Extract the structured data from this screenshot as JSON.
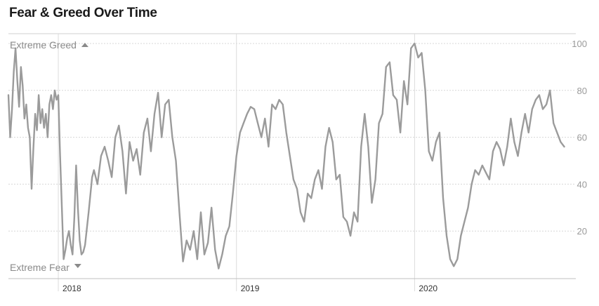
{
  "chart_data": {
    "type": "line",
    "title": "Fear & Greed Over Time",
    "ylim": [
      0,
      100
    ],
    "yticks": [
      20,
      40,
      60,
      80,
      100
    ],
    "xticks": [
      {
        "label": "2018",
        "x": 2018.0
      },
      {
        "label": "2019",
        "x": 2019.0
      },
      {
        "label": "2020",
        "x": 2020.0
      }
    ],
    "xlim": [
      2017.72,
      2020.85
    ],
    "grid": true,
    "annotations": {
      "top": "Extreme Greed",
      "bottom": "Extreme Fear"
    },
    "series": [
      {
        "x": [
          2017.72,
          2017.73,
          2017.74,
          2017.75,
          2017.76,
          2017.77,
          2017.78,
          2017.79,
          2017.8,
          2017.81,
          2017.82,
          2017.83,
          2017.84,
          2017.85,
          2017.86,
          2017.87,
          2017.88,
          2017.89,
          2017.9,
          2017.91,
          2017.92,
          2017.93,
          2017.94,
          2017.95,
          2017.96,
          2017.97,
          2017.98,
          2017.99,
          2018.0,
          2018.01,
          2018.02,
          2018.03,
          2018.04,
          2018.05,
          2018.06,
          2018.07,
          2018.08,
          2018.09,
          2018.1,
          2018.11,
          2018.12,
          2018.13,
          2018.14,
          2018.15,
          2018.17,
          2018.19,
          2018.2,
          2018.22,
          2018.24,
          2018.26,
          2018.28,
          2018.3,
          2018.32,
          2018.34,
          2018.36,
          2018.38,
          2018.4,
          2018.42,
          2018.44,
          2018.46,
          2018.48,
          2018.5,
          2018.52,
          2018.54,
          2018.56,
          2018.58,
          2018.6,
          2018.62,
          2018.64,
          2018.66,
          2018.68,
          2018.7,
          2018.72,
          2018.74,
          2018.76,
          2018.78,
          2018.8,
          2018.82,
          2018.84,
          2018.86,
          2018.88,
          2018.9,
          2018.92,
          2018.94,
          2018.96,
          2018.98,
          2019.0,
          2019.02,
          2019.04,
          2019.06,
          2019.08,
          2019.1,
          2019.12,
          2019.14,
          2019.16,
          2019.18,
          2019.2,
          2019.22,
          2019.24,
          2019.26,
          2019.28,
          2019.3,
          2019.32,
          2019.34,
          2019.36,
          2019.38,
          2019.4,
          2019.42,
          2019.44,
          2019.46,
          2019.48,
          2019.5,
          2019.52,
          2019.54,
          2019.56,
          2019.58,
          2019.6,
          2019.62,
          2019.64,
          2019.66,
          2019.68,
          2019.7,
          2019.72,
          2019.74,
          2019.76,
          2019.78,
          2019.8,
          2019.82,
          2019.84,
          2019.86,
          2019.88,
          2019.9,
          2019.92,
          2019.94,
          2019.96,
          2019.98,
          2020.0,
          2020.02,
          2020.04,
          2020.06,
          2020.08,
          2020.1,
          2020.12,
          2020.14,
          2020.16,
          2020.18,
          2020.2,
          2020.22,
          2020.24,
          2020.26,
          2020.28,
          2020.3,
          2020.32,
          2020.34,
          2020.36,
          2020.38,
          2020.4,
          2020.42,
          2020.44,
          2020.46,
          2020.48,
          2020.5,
          2020.52,
          2020.54,
          2020.56,
          2020.58,
          2020.6,
          2020.62,
          2020.64,
          2020.66,
          2020.68,
          2020.7,
          2020.72,
          2020.74,
          2020.76,
          2020.78,
          2020.8,
          2020.82,
          2020.84
        ],
        "values": [
          78,
          60,
          72,
          88,
          98,
          84,
          73,
          90,
          82,
          68,
          74,
          64,
          60,
          38,
          55,
          70,
          63,
          78,
          66,
          72,
          64,
          70,
          60,
          74,
          78,
          72,
          80,
          76,
          78,
          52,
          30,
          8,
          12,
          17,
          20,
          14,
          10,
          26,
          48,
          30,
          16,
          10,
          11,
          14,
          28,
          43,
          46,
          40,
          52,
          56,
          50,
          43,
          60,
          65,
          54,
          36,
          58,
          50,
          55,
          44,
          62,
          68,
          54,
          70,
          79,
          60,
          74,
          76,
          60,
          50,
          28,
          7,
          16,
          12,
          20,
          8,
          28,
          10,
          15,
          30,
          12,
          4,
          10,
          18,
          22,
          36,
          52,
          62,
          66,
          70,
          73,
          72,
          66,
          60,
          68,
          56,
          74,
          72,
          76,
          74,
          62,
          52,
          42,
          38,
          28,
          24,
          36,
          34,
          42,
          46,
          38,
          56,
          64,
          58,
          42,
          44,
          26,
          24,
          18,
          28,
          24,
          56,
          70,
          56,
          32,
          42,
          66,
          70,
          90,
          92,
          78,
          76,
          62,
          84,
          74,
          98,
          100,
          94,
          96,
          80,
          54,
          50,
          58,
          62,
          34,
          18,
          8,
          5,
          8,
          18,
          24,
          30,
          40,
          46,
          44,
          48,
          45,
          42,
          54,
          58,
          55,
          48,
          56,
          68,
          58,
          52,
          62,
          70,
          62,
          72,
          76,
          78,
          72,
          74,
          80,
          66,
          62,
          58,
          56
        ]
      }
    ]
  }
}
